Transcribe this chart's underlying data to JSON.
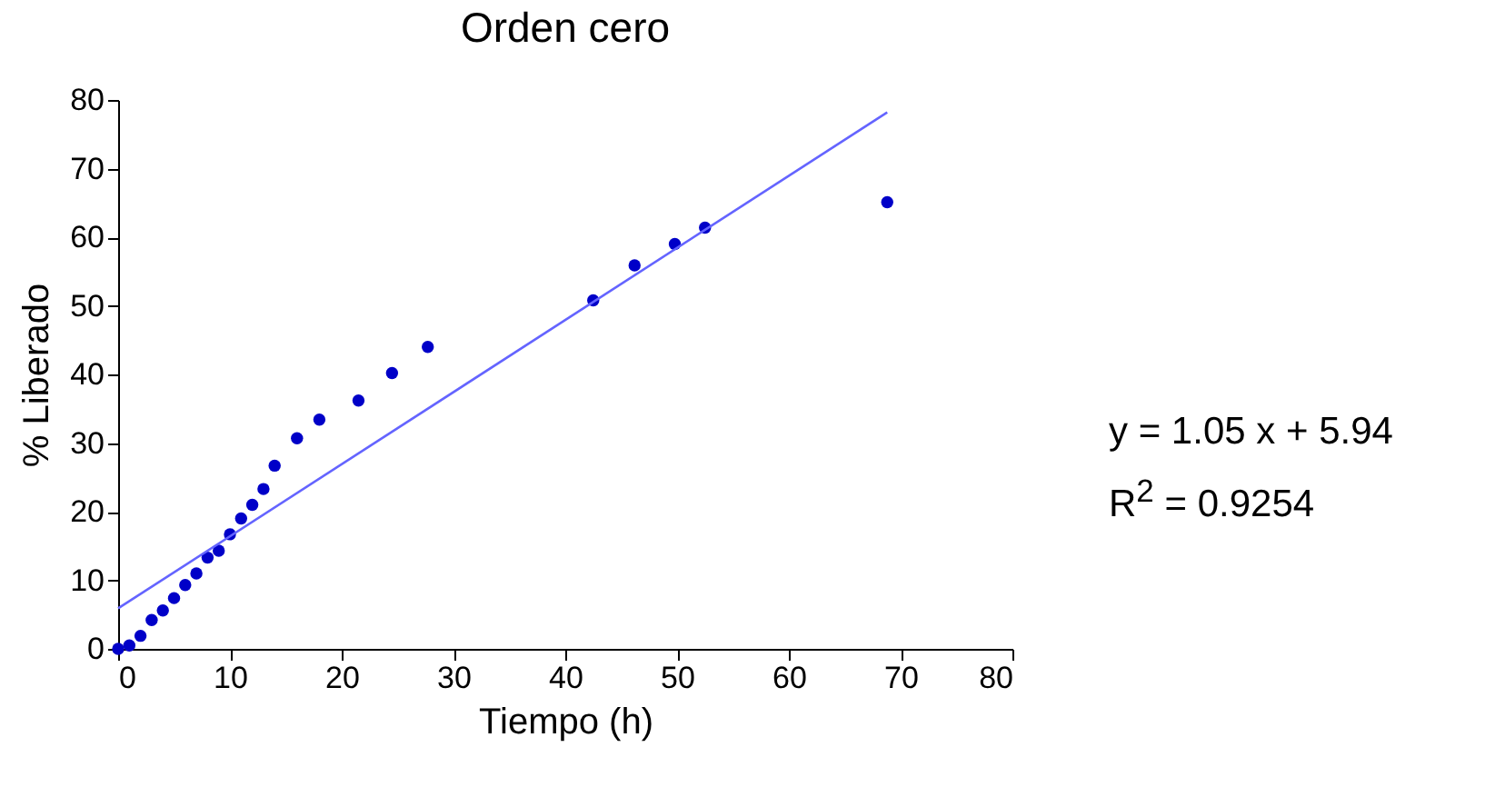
{
  "chart_data": {
    "type": "scatter",
    "title": "Orden cero",
    "xlabel": "Tiempo (h)",
    "ylabel": "% Liberado",
    "xlim": [
      0,
      80
    ],
    "xticks": [
      0,
      10,
      20,
      30,
      40,
      50,
      60,
      70,
      80
    ],
    "ylim": [
      0,
      80
    ],
    "yticks": [
      0,
      10,
      20,
      30,
      40,
      50,
      60,
      70,
      80
    ],
    "grid": false,
    "series": [
      {
        "marker": "circle",
        "color": "#0000c8",
        "x": [
          0,
          1,
          2,
          3,
          4,
          5,
          6,
          7,
          8,
          9,
          10,
          11,
          12,
          13,
          14,
          16,
          18,
          21.5,
          24.5,
          27.7,
          42.5,
          46.2,
          49.8,
          52.5,
          68.8
        ],
        "values": [
          0,
          0.5,
          1.9,
          4.2,
          5.6,
          7.4,
          9.3,
          11,
          13.3,
          14.3,
          16.7,
          19,
          21,
          23.3,
          26.7,
          30.7,
          33.4,
          36.2,
          40.2,
          44,
          50.8,
          55.9,
          59,
          61.4,
          65.1
        ]
      },
      {
        "type": "line",
        "marker": "none",
        "color": "#6464ff",
        "x": [
          0,
          68.8
        ],
        "values": [
          5.9,
          78.2
        ]
      }
    ],
    "annotations": [
      "y = 1.05 x + 5.94",
      "R$^{2}$ = 0.9254"
    ]
  }
}
